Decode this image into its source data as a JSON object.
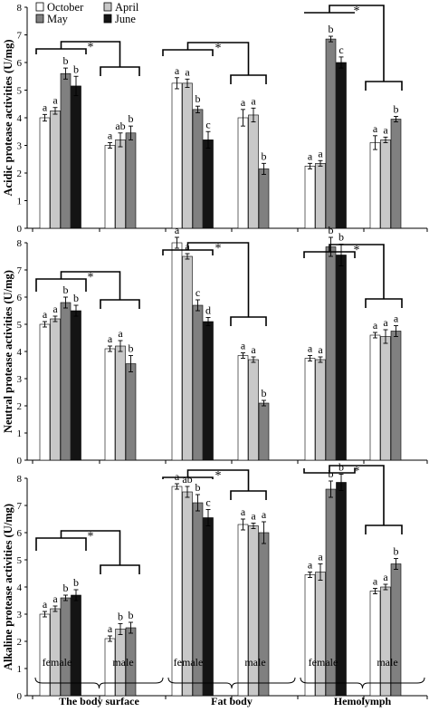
{
  "legend": [
    {
      "label": "October",
      "color": "#ffffff"
    },
    {
      "label": "April",
      "color": "#c8c8c8"
    },
    {
      "label": "May",
      "color": "#808080"
    },
    {
      "label": "June",
      "color": "#141414"
    }
  ],
  "significance_mark": "*",
  "tissues": [
    "The body surface",
    "Fat body",
    "Hemolymph"
  ],
  "sexes": [
    "female",
    "male"
  ],
  "chart_data": [
    {
      "type": "bar",
      "ylabel": "Acidic protease activities (U/mg)",
      "ylim": [
        0,
        8
      ],
      "yticks": [
        "0",
        "1",
        "2",
        "3",
        "4",
        "5",
        "6",
        "7",
        "8"
      ],
      "groups": [
        {
          "tissue": "The body surface",
          "sex": "female",
          "values": [
            4.0,
            4.25,
            5.6,
            5.15
          ],
          "errors": [
            0.12,
            0.12,
            0.2,
            0.35
          ],
          "letters": [
            "a",
            "a",
            "b",
            "b"
          ]
        },
        {
          "tissue": "The body surface",
          "sex": "male",
          "values": [
            3.0,
            3.2,
            3.45
          ],
          "errors": [
            0.1,
            0.25,
            0.25
          ],
          "letters": [
            "a",
            "ab",
            "b"
          ]
        },
        {
          "tissue": "Fat body",
          "sex": "female",
          "values": [
            5.25,
            5.25,
            4.3,
            3.2
          ],
          "errors": [
            0.2,
            0.15,
            0.12,
            0.3
          ],
          "letters": [
            "a",
            "a",
            "b",
            "c"
          ]
        },
        {
          "tissue": "Fat body",
          "sex": "male",
          "values": [
            4.0,
            4.1,
            2.15
          ],
          "errors": [
            0.3,
            0.25,
            0.2
          ],
          "letters": [
            "a",
            "a",
            "b"
          ]
        },
        {
          "tissue": "Hemolymph",
          "sex": "female",
          "values": [
            2.25,
            2.35,
            6.85,
            6.0
          ],
          "errors": [
            0.1,
            0.1,
            0.1,
            0.2
          ],
          "letters": [
            "a",
            "a",
            "b",
            "c"
          ]
        },
        {
          "tissue": "Hemolymph",
          "sex": "male",
          "values": [
            3.1,
            3.2,
            3.95
          ],
          "errors": [
            0.25,
            0.1,
            0.1
          ],
          "letters": [
            "a",
            "a",
            "b"
          ]
        }
      ]
    },
    {
      "type": "bar",
      "ylabel": "Neutral protease activities (U/mg)",
      "ylim": [
        0,
        8
      ],
      "yticks": [
        "0",
        "1",
        "2",
        "3",
        "4",
        "5",
        "6",
        "7",
        "8"
      ],
      "groups": [
        {
          "tissue": "The body surface",
          "sex": "female",
          "values": [
            5.0,
            5.2,
            5.8,
            5.5
          ],
          "errors": [
            0.1,
            0.1,
            0.2,
            0.2
          ],
          "letters": [
            "a",
            "a",
            "b",
            "b"
          ]
        },
        {
          "tissue": "The body surface",
          "sex": "male",
          "values": [
            4.1,
            4.2,
            3.55
          ],
          "errors": [
            0.1,
            0.2,
            0.3
          ],
          "letters": [
            "a",
            "a",
            "b"
          ]
        },
        {
          "tissue": "Fat body",
          "sex": "female",
          "values": [
            8.0,
            7.5,
            5.7,
            5.1
          ],
          "errors": [
            0.2,
            0.1,
            0.2,
            0.15
          ],
          "letters": [
            "a",
            "a",
            "c",
            "d"
          ]
        },
        {
          "tissue": "Fat body",
          "sex": "male",
          "values": [
            3.85,
            3.7,
            2.1
          ],
          "errors": [
            0.1,
            0.1,
            0.1
          ],
          "letters": [
            "a",
            "a",
            "b"
          ]
        },
        {
          "tissue": "Hemolymph",
          "sex": "female",
          "values": [
            3.75,
            3.7,
            7.85,
            7.55
          ],
          "errors": [
            0.1,
            0.1,
            0.35,
            0.4
          ],
          "letters": [
            "a",
            "a",
            "b",
            "b"
          ]
        },
        {
          "tissue": "Hemolymph",
          "sex": "male",
          "values": [
            4.6,
            4.55,
            4.75
          ],
          "errors": [
            0.1,
            0.25,
            0.2
          ],
          "letters": [
            "a",
            "a",
            "a"
          ]
        }
      ]
    },
    {
      "type": "bar",
      "ylabel": "Alkaline protease activities (U/mg)",
      "ylim": [
        0,
        8
      ],
      "yticks": [
        "0",
        "1",
        "2",
        "3",
        "4",
        "5",
        "6",
        "7",
        "8"
      ],
      "groups": [
        {
          "tissue": "The body surface",
          "sex": "female",
          "values": [
            3.0,
            3.2,
            3.6,
            3.7
          ],
          "errors": [
            0.1,
            0.1,
            0.1,
            0.2
          ],
          "letters": [
            "a",
            "a",
            "b",
            "b"
          ]
        },
        {
          "tissue": "The body surface",
          "sex": "male",
          "values": [
            2.1,
            2.45,
            2.5
          ],
          "errors": [
            0.1,
            0.2,
            0.2
          ],
          "letters": [
            "a",
            "b",
            "b"
          ]
        },
        {
          "tissue": "Fat body",
          "sex": "female",
          "values": [
            7.7,
            7.5,
            7.1,
            6.55
          ],
          "errors": [
            0.1,
            0.2,
            0.3,
            0.3
          ],
          "letters": [
            "a",
            "ab",
            "b",
            "c"
          ]
        },
        {
          "tissue": "Fat body",
          "sex": "male",
          "values": [
            6.3,
            6.25,
            6.0
          ],
          "errors": [
            0.2,
            0.1,
            0.4
          ],
          "letters": [
            "a",
            "a",
            "a"
          ]
        },
        {
          "tissue": "Hemolymph",
          "sex": "female",
          "values": [
            4.45,
            4.55,
            7.6,
            7.85
          ],
          "errors": [
            0.1,
            0.3,
            0.3,
            0.3
          ],
          "letters": [
            "a",
            "a",
            "b",
            "b"
          ]
        },
        {
          "tissue": "Hemolymph",
          "sex": "male",
          "values": [
            3.85,
            4.0,
            4.85
          ],
          "errors": [
            0.1,
            0.1,
            0.2
          ],
          "letters": [
            "a",
            "a",
            "b"
          ]
        }
      ]
    }
  ]
}
